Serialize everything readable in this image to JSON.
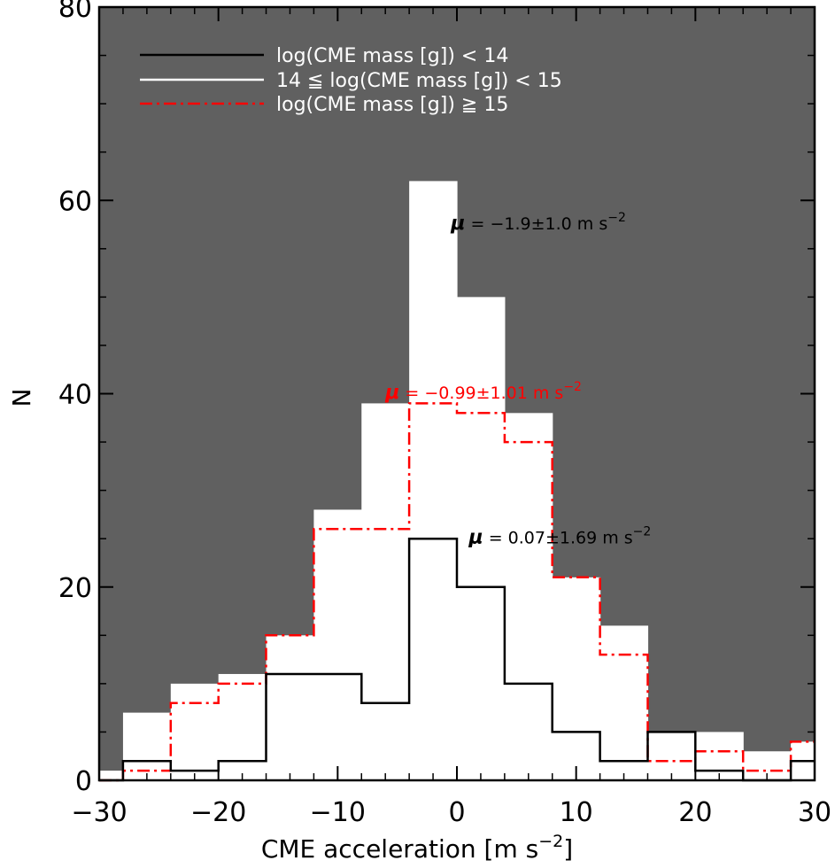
{
  "chart_data": {
    "type": "histogram",
    "xlabel": "CME acceleration [m s",
    "xlabel_exp": "−2",
    "xlabel_tail": "]",
    "ylabel": "N",
    "xlim": [
      -30,
      30
    ],
    "ylim": [
      0,
      80
    ],
    "x_ticks": [
      -30,
      -20,
      -10,
      0,
      10,
      20,
      30
    ],
    "x_tick_labels": [
      "−30",
      "−20",
      "−10",
      "0",
      "10",
      "20",
      "30"
    ],
    "y_ticks": [
      0,
      20,
      40,
      60,
      80
    ],
    "y_tick_labels": [
      "0",
      "20",
      "40",
      "60",
      "80"
    ],
    "background": "#606060",
    "bin_edges": [
      -30,
      -28,
      -24,
      -20,
      -16,
      -12,
      -8,
      -4,
      0,
      4,
      8,
      12,
      16,
      20,
      24,
      28,
      30
    ],
    "series": [
      {
        "name": "log(CME mass [g]) < 14",
        "style": "solid",
        "color": "#000000",
        "counts": [
          0,
          2,
          1,
          2,
          11,
          11,
          8,
          25,
          20,
          10,
          5,
          2,
          5,
          1,
          0,
          2
        ]
      },
      {
        "name": "14 ≦ log(CME mass [g]) < 15",
        "style": "filled",
        "color": "#ffffff",
        "counts": [
          1,
          7,
          10,
          11,
          15,
          28,
          39,
          62,
          50,
          38,
          21,
          16,
          5,
          5,
          3,
          4
        ]
      },
      {
        "name": "log(CME mass [g]) ≧ 15",
        "style": "dashdot",
        "color": "#ff0000",
        "counts": [
          0,
          1,
          8,
          10,
          15,
          26,
          26,
          39,
          38,
          35,
          21,
          13,
          2,
          3,
          1,
          4
        ]
      }
    ],
    "annotations": [
      {
        "mu": "μ",
        "text": " = −1.9±1.0 m s",
        "exp": "−2",
        "color": "#000000",
        "x": -0.5,
        "y": 57
      },
      {
        "mu": "μ",
        "text": " = −0.99±1.01 m s",
        "exp": "−2",
        "color": "#ff0000",
        "x": -6,
        "y": 39.5
      },
      {
        "mu": "μ",
        "text": " = 0.07±1.69 m s",
        "exp": "−2",
        "color": "#000000",
        "x": 1,
        "y": 24.5
      }
    ],
    "legend_position": "top-left"
  }
}
